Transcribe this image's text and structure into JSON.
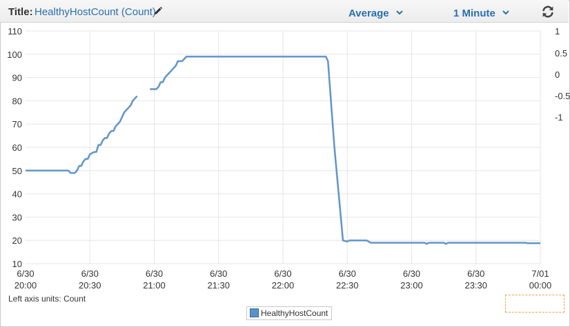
{
  "header": {
    "title_label": "Title:",
    "title_value": "HealthyHostCount (Count)",
    "statistic": "Average",
    "period": "1 Minute"
  },
  "icons": {
    "edit": "pencil-icon",
    "dropdown": "chevron-down-icon",
    "refresh": "refresh-icon"
  },
  "colors": {
    "series": "#5b92c7",
    "series_stroke": "#2e6aa3",
    "link": "#2a6fb0",
    "grid": "#e6e6e6"
  },
  "chart_data": {
    "type": "line",
    "title": "",
    "xlabel": "",
    "ylabel": "",
    "left_axis_units_label": "Left axis units:",
    "left_axis_units": "Count",
    "ylim": [
      10,
      110
    ],
    "yticks": [
      110,
      100,
      90,
      80,
      70,
      60,
      50,
      40,
      30,
      20,
      10
    ],
    "right_yticks": [
      "1",
      "0.5",
      "0",
      "-0.5",
      "-1"
    ],
    "xticks": [
      [
        "6/30",
        "20:00"
      ],
      [
        "6/30",
        "20:30"
      ],
      [
        "6/30",
        "21:00"
      ],
      [
        "6/30",
        "21:30"
      ],
      [
        "6/30",
        "22:00"
      ],
      [
        "6/30",
        "22:30"
      ],
      [
        "6/30",
        "23:00"
      ],
      [
        "6/30",
        "23:30"
      ],
      [
        "7/01",
        "00:00"
      ]
    ],
    "x_unit": "minutes after 6/30 20:00",
    "grid": true,
    "legend_position": "bottom-center",
    "series": [
      {
        "name": "HealthyHostCount",
        "segments": [
          [
            [
              0,
              50
            ],
            [
              20,
              50
            ],
            [
              21,
              49
            ],
            [
              23,
              49
            ],
            [
              24,
              50
            ],
            [
              25,
              52
            ],
            [
              26,
              52
            ],
            [
              27,
              54
            ],
            [
              28,
              55
            ],
            [
              29,
              55
            ],
            [
              30,
              57
            ],
            [
              32,
              58
            ],
            [
              33,
              58
            ],
            [
              34,
              61
            ],
            [
              35,
              61
            ],
            [
              36,
              63
            ],
            [
              37,
              64
            ],
            [
              38,
              64
            ],
            [
              39,
              66
            ],
            [
              40,
              67
            ],
            [
              41,
              67
            ],
            [
              42,
              69
            ],
            [
              43,
              70
            ],
            [
              44,
              71
            ],
            [
              45,
              73
            ],
            [
              46,
              75
            ],
            [
              47,
              76
            ],
            [
              48,
              77
            ],
            [
              49,
              78
            ],
            [
              50,
              80
            ],
            [
              51,
              81
            ],
            [
              52,
              82
            ]
          ],
          [
            [
              58,
              85
            ],
            [
              61,
              85
            ],
            [
              62,
              86
            ],
            [
              63,
              88
            ],
            [
              64,
              88
            ],
            [
              65,
              90
            ],
            [
              66,
              91
            ],
            [
              67,
              92
            ],
            [
              68,
              93
            ],
            [
              69,
              94
            ],
            [
              70,
              95
            ],
            [
              71,
              97
            ],
            [
              73,
              97
            ],
            [
              74,
              98
            ],
            [
              75,
              99
            ],
            [
              140,
              99
            ],
            [
              141,
              97
            ],
            [
              144,
              60
            ],
            [
              147,
              30
            ],
            [
              148,
              20
            ],
            [
              150,
              19.5
            ],
            [
              151,
              20
            ],
            [
              159,
              20
            ],
            [
              160,
              19.5
            ],
            [
              161,
              19
            ],
            [
              186,
              19
            ],
            [
              187,
              18.5
            ],
            [
              188,
              19
            ],
            [
              195,
              19
            ],
            [
              196,
              18.5
            ],
            [
              197,
              19
            ],
            [
              233,
              19
            ],
            [
              234,
              18.8
            ],
            [
              240,
              18.8
            ]
          ]
        ]
      }
    ]
  },
  "legend": {
    "label": "HealthyHostCount"
  }
}
